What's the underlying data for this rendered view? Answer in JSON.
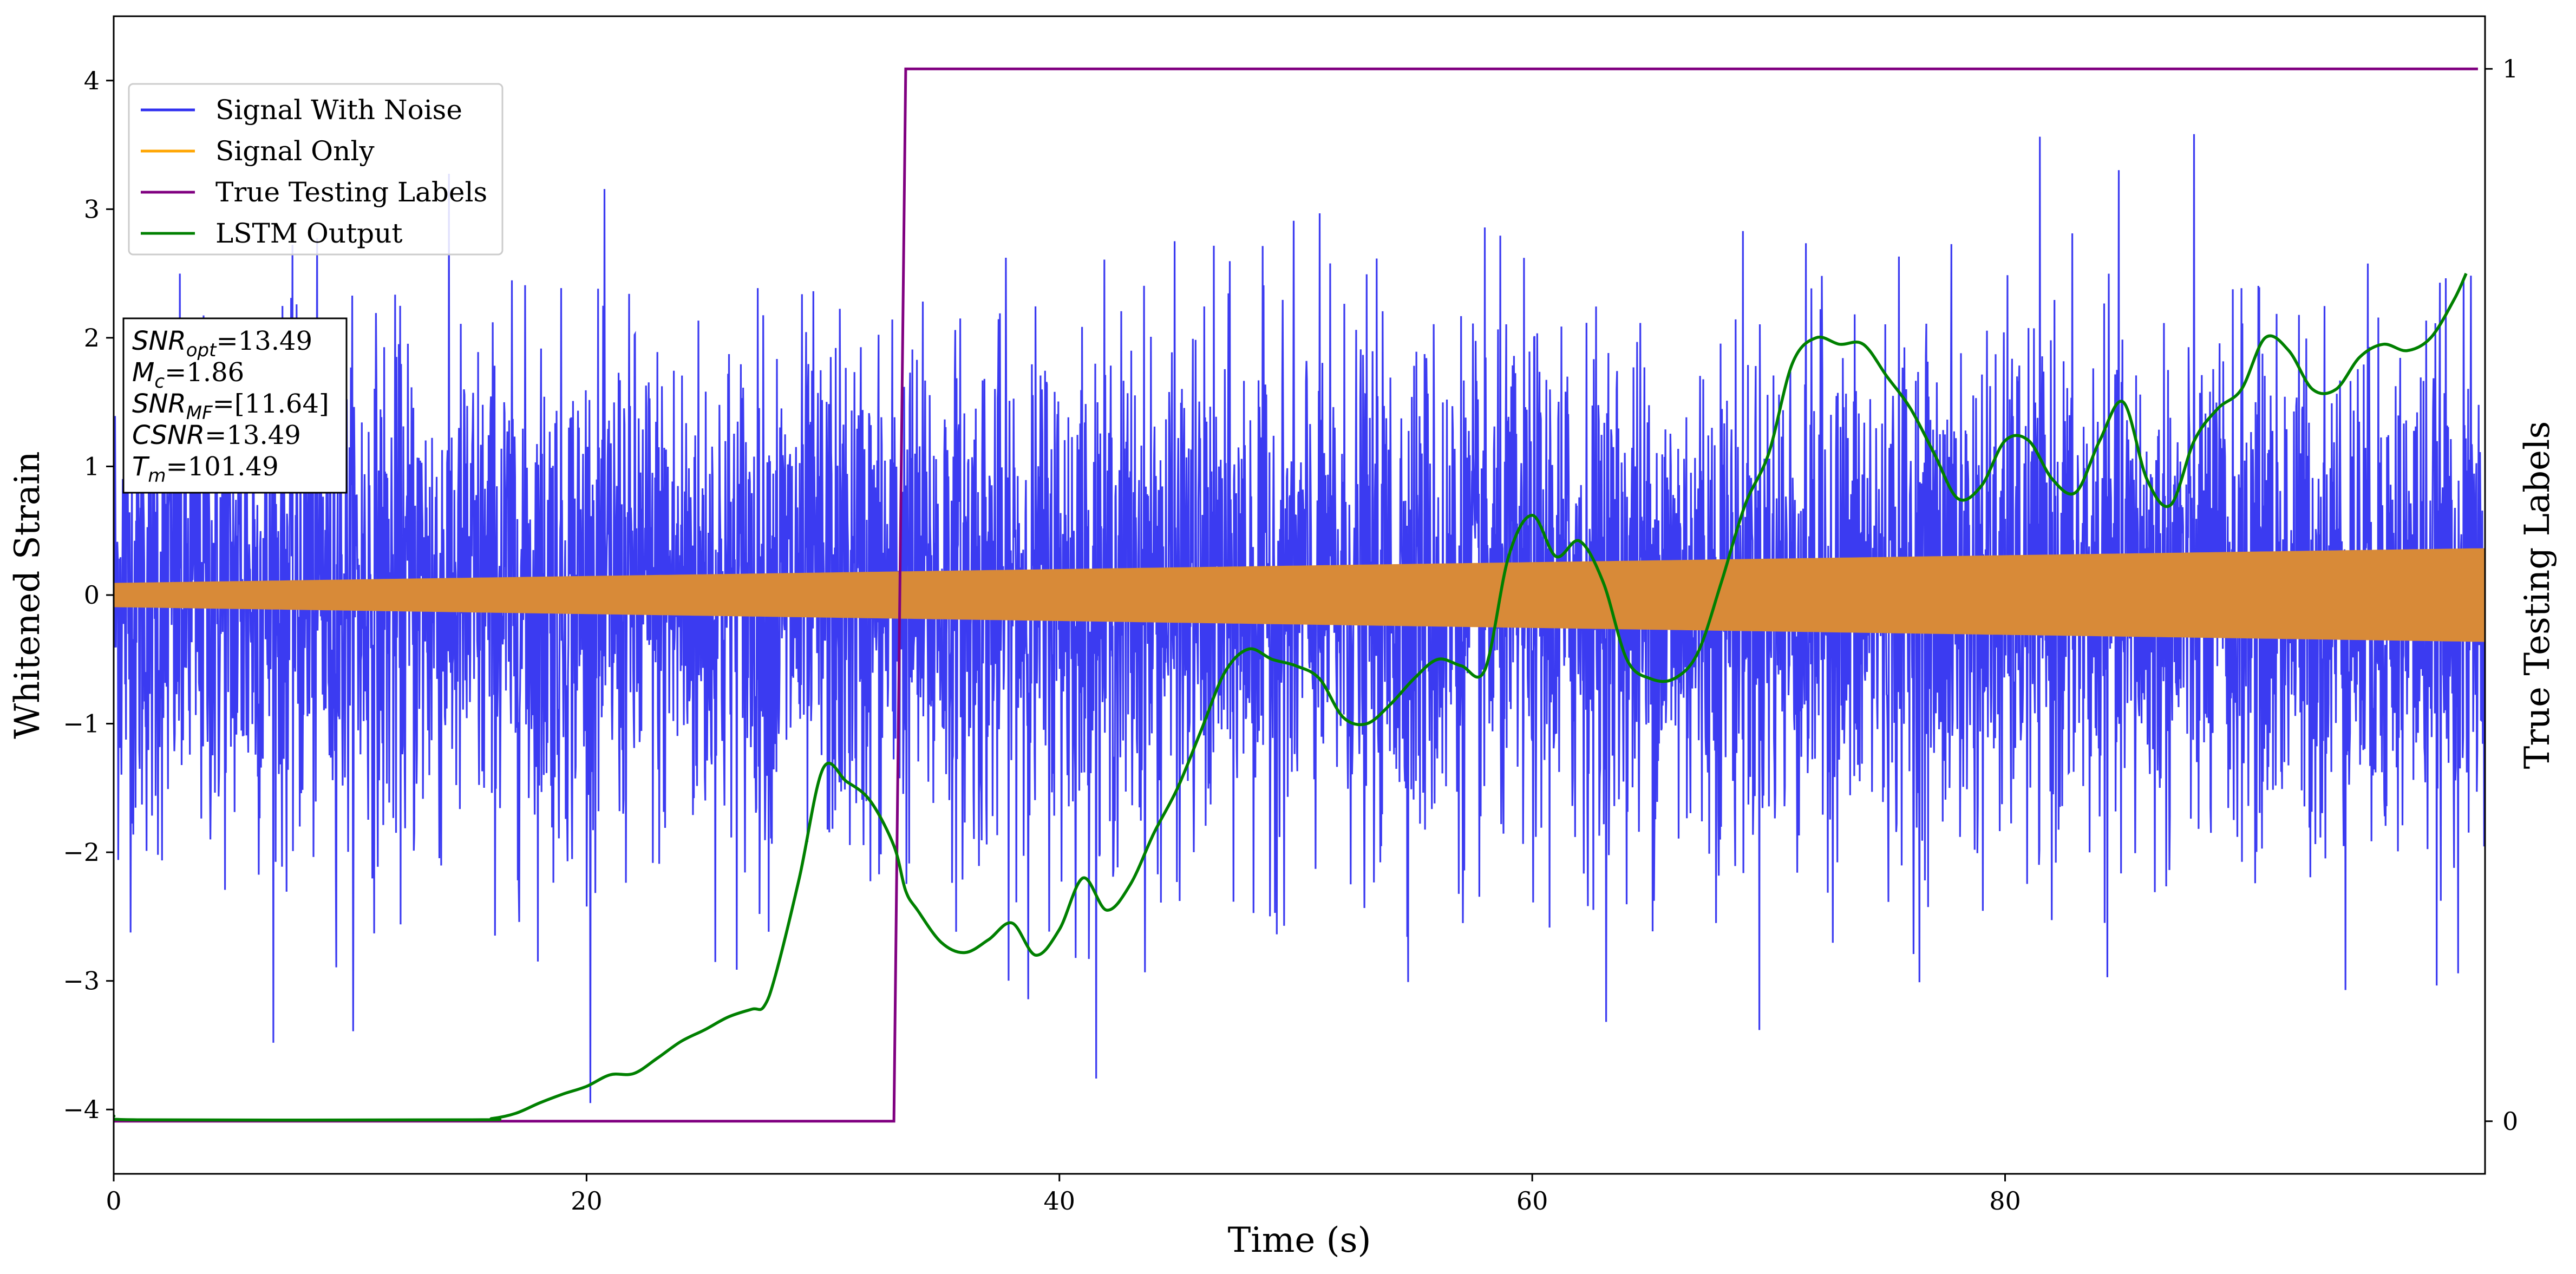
{
  "chart_data": {
    "type": "line",
    "xlabel": "Time (s)",
    "ylabel": "Whitened Strain",
    "y2label": "True Testing Labels",
    "xlim": [
      0,
      100.3
    ],
    "ylim": [
      -4.5,
      4.5
    ],
    "y2lim": [
      -0.05,
      1.05
    ],
    "x_ticks": [
      0,
      20,
      40,
      60,
      80
    ],
    "y_ticks": [
      -4,
      -3,
      -2,
      -1,
      0,
      1,
      2,
      3,
      4
    ],
    "y2_ticks": [
      0,
      1
    ],
    "grid": false,
    "legend_position": "top-left",
    "series": [
      {
        "name": "Signal With Noise",
        "axis": "left",
        "color": "#3030f0",
        "x_range": [
          0,
          100.3
        ],
        "std": 1.0,
        "max": 4.05,
        "min": -3.95,
        "description_values": "dense noise samples around 0"
      },
      {
        "name": "Signal Only",
        "axis": "left",
        "color": "#ffa500",
        "x_range": [
          0,
          100.3
        ],
        "amplitude_start": 0.09,
        "amplitude_end": 0.36
      },
      {
        "name": "True Testing Labels",
        "axis": "right",
        "color": "#800080",
        "x": [
          0,
          33.0,
          33.5,
          100.0
        ],
        "y": [
          0,
          0,
          1,
          1
        ]
      },
      {
        "name": "LSTM Output",
        "axis": "left",
        "color": "#008000",
        "x": [
          0,
          1,
          15,
          16,
          17,
          18,
          19,
          20,
          21,
          22,
          23,
          24,
          25,
          26,
          27,
          27.5,
          28,
          29,
          30,
          31,
          32,
          33,
          33.5,
          34,
          35,
          36,
          37,
          38,
          39,
          40,
          41,
          42,
          43,
          44,
          45,
          46,
          47,
          48,
          49,
          50,
          51,
          52,
          53,
          54,
          55,
          56,
          57,
          58,
          59,
          60,
          61,
          62,
          63,
          64,
          65,
          66,
          67,
          68,
          69,
          70,
          71,
          72,
          73,
          74,
          75,
          76,
          77,
          78,
          79,
          80,
          81,
          82,
          83,
          84,
          85,
          86,
          87,
          88,
          89,
          90,
          91,
          92,
          93,
          94,
          95,
          96,
          97,
          98,
          99,
          99.5
        ],
        "y": [
          -4.05,
          -4.08,
          -4.08,
          -4.07,
          -4.03,
          -3.95,
          -3.88,
          -3.82,
          -3.73,
          -3.72,
          -3.6,
          -3.47,
          -3.38,
          -3.28,
          -3.22,
          -3.2,
          -2.95,
          -2.2,
          -1.35,
          -1.45,
          -1.6,
          -1.95,
          -2.3,
          -2.45,
          -2.7,
          -2.78,
          -2.68,
          -2.55,
          -2.8,
          -2.6,
          -2.2,
          -2.45,
          -2.25,
          -1.85,
          -1.5,
          -1.05,
          -0.6,
          -0.42,
          -0.5,
          -0.55,
          -0.65,
          -0.95,
          -1.0,
          -0.85,
          -0.65,
          -0.5,
          -0.55,
          -0.58,
          0.3,
          0.62,
          0.3,
          0.42,
          0.1,
          -0.5,
          -0.65,
          -0.65,
          -0.45,
          0.1,
          0.7,
          1.1,
          1.8,
          2.0,
          1.95,
          1.95,
          1.7,
          1.45,
          1.1,
          0.75,
          0.85,
          1.2,
          1.2,
          0.9,
          0.8,
          1.2,
          1.5,
          0.9,
          0.7,
          1.2,
          1.45,
          1.6,
          2.0,
          1.9,
          1.6,
          1.6,
          1.85,
          1.95,
          1.9,
          2.0,
          2.3,
          2.5
        ],
        "min_label": "-2.88 at ~39"
      }
    ],
    "annotation_box": {
      "lines": [
        {
          "base": "SNR",
          "sub": "opt",
          "value": "=13.49"
        },
        {
          "base": "M",
          "sub": "c",
          "value": "=1.86"
        },
        {
          "base": "SNR",
          "sub": "MF",
          "value": "=[11.64]"
        },
        {
          "base": "CSNR",
          "sub": "",
          "value": "=13.49"
        },
        {
          "base": "T",
          "sub": "m",
          "value": "=101.49"
        }
      ]
    }
  }
}
